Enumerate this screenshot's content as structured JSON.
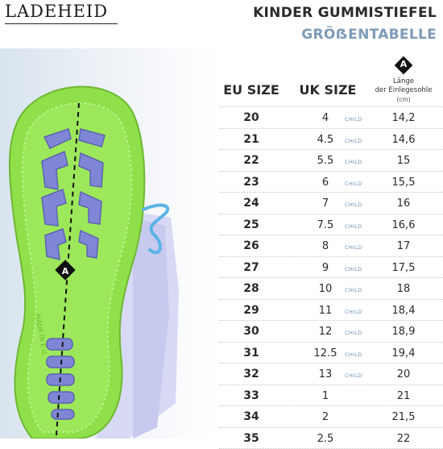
{
  "brand": "LADEHEID",
  "title_line1": "KINDER GUMMISTIEFEL",
  "title_line2": "GRÖẞENTABELLE",
  "photo": {
    "marker_letter": "A",
    "sole_text": "MADE IN E.U."
  },
  "table": {
    "col_eu": "EU SIZE",
    "col_uk": "UK SIZE",
    "col_len_badge": "A",
    "col_len_line1": "Länge",
    "col_len_line2": "der Einlegesohle",
    "col_len_unit": "(cm)",
    "rows": [
      {
        "eu": "20",
        "uk": "4",
        "tag": "CHILD",
        "len": "14,2"
      },
      {
        "eu": "21",
        "uk": "4.5",
        "tag": "CHILD",
        "len": "14,6"
      },
      {
        "eu": "22",
        "uk": "5.5",
        "tag": "CHILD",
        "len": "15"
      },
      {
        "eu": "23",
        "uk": "6",
        "tag": "CHILD",
        "len": "15,5"
      },
      {
        "eu": "24",
        "uk": "7",
        "tag": "CHILD",
        "len": "16"
      },
      {
        "eu": "25",
        "uk": "7.5",
        "tag": "CHILD",
        "len": "16,6"
      },
      {
        "eu": "26",
        "uk": "8",
        "tag": "CHILD",
        "len": "17"
      },
      {
        "eu": "27",
        "uk": "9",
        "tag": "CHILD",
        "len": "17,5"
      },
      {
        "eu": "28",
        "uk": "10",
        "tag": "CHILD",
        "len": "18"
      },
      {
        "eu": "29",
        "uk": "11",
        "tag": "CHILD",
        "len": "18,4"
      },
      {
        "eu": "30",
        "uk": "12",
        "tag": "CHILD",
        "len": "18,9"
      },
      {
        "eu": "31",
        "uk": "12.5",
        "tag": "CHILD",
        "len": "19,4"
      },
      {
        "eu": "32",
        "uk": "13",
        "tag": "CHILD",
        "len": "20"
      },
      {
        "eu": "33",
        "uk": "1",
        "tag": "",
        "len": "21"
      },
      {
        "eu": "34",
        "uk": "2",
        "tag": "",
        "len": "21,5"
      },
      {
        "eu": "35",
        "uk": "2.5",
        "tag": "",
        "len": "22"
      }
    ]
  },
  "colors": {
    "sole_green": "#8fe04a",
    "tread_purple": "#7f86d6",
    "lace_blue": "#5ab3e6",
    "accent_blue": "#7d9bb8"
  }
}
